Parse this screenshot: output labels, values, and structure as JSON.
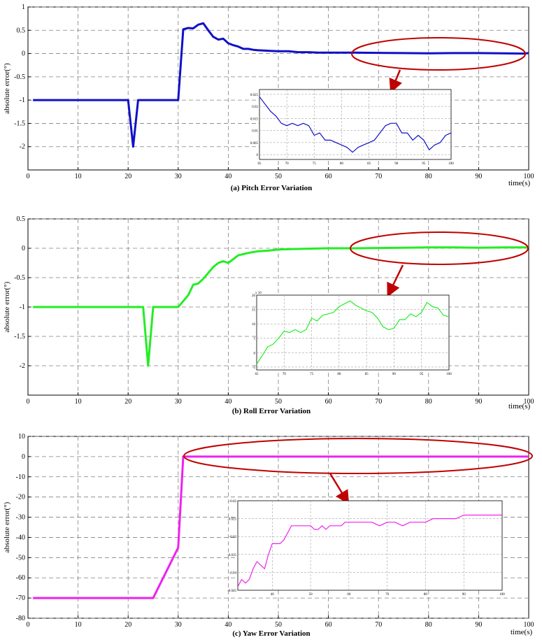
{
  "chart_data": [
    {
      "type": "line",
      "caption": "(a) Pitch Error Variation",
      "ylabel": "absolute error(°)",
      "xunit": "time(s)",
      "xlim": [
        0,
        100
      ],
      "ylim": [
        -2.5,
        1
      ],
      "xticks": [
        "0",
        "10",
        "20",
        "30",
        "40",
        "50",
        "60",
        "70",
        "80",
        "90",
        "100"
      ],
      "yticks": [
        "1",
        "0.5",
        "0",
        "-0.5",
        "-1",
        "-1.5",
        "-2"
      ],
      "ytick_values": [
        1,
        0.5,
        0,
        -0.5,
        -1,
        -1.5,
        -2
      ],
      "grid": true,
      "color": "#1010c8",
      "x": [
        1,
        2,
        5,
        10,
        15,
        20,
        21,
        22,
        25,
        28,
        30,
        31,
        32,
        33,
        34,
        35,
        36,
        37,
        38,
        39,
        40,
        41,
        42,
        43,
        44,
        45,
        46,
        48,
        50,
        52,
        54,
        56,
        58,
        60,
        65,
        70,
        75,
        80,
        85,
        90,
        95,
        99,
        100
      ],
      "y": [
        -1,
        -1,
        -1,
        -1,
        -1,
        -1,
        -2,
        -1,
        -1,
        -1,
        -1,
        0.52,
        0.55,
        0.54,
        0.62,
        0.65,
        0.5,
        0.36,
        0.3,
        0.32,
        0.22,
        0.18,
        0.15,
        0.1,
        0.1,
        0.08,
        0.07,
        0.06,
        0.05,
        0.05,
        0.03,
        0.03,
        0.02,
        0.02,
        0.02,
        0.015,
        0.01,
        0.005,
        0.01,
        0.01,
        0.005,
        0.0,
        0.01
      ],
      "highlight_xrange": [
        65,
        100
      ],
      "inset": {
        "xlim": [
          65,
          100
        ],
        "ylim": [
          -0.002,
          0.027
        ],
        "xticks": [
          "65",
          "70",
          "75",
          "80",
          "85",
          "90",
          "95",
          "100"
        ],
        "yticks": [
          "0.025",
          "0.02",
          "0.015",
          "0.01",
          "0.005",
          "0"
        ],
        "ytick_values": [
          0.025,
          0.02,
          0.015,
          0.01,
          0.005,
          0
        ],
        "x": [
          65,
          66,
          67,
          68,
          69,
          70,
          71,
          72,
          73,
          74,
          75,
          76,
          77,
          78,
          79,
          80,
          81,
          82,
          83,
          84,
          85,
          86,
          87,
          88,
          89,
          90,
          91,
          92,
          93,
          94,
          95,
          96,
          97,
          98,
          99,
          100
        ],
        "y": [
          0.024,
          0.021,
          0.018,
          0.016,
          0.013,
          0.012,
          0.013,
          0.012,
          0.013,
          0.012,
          0.008,
          0.009,
          0.006,
          0.006,
          0.005,
          0.004,
          0.003,
          0.001,
          0.003,
          0.004,
          0.005,
          0.006,
          0.009,
          0.012,
          0.013,
          0.013,
          0.009,
          0.009,
          0.006,
          0.008,
          0.006,
          0.002,
          0.004,
          0.005,
          0.008,
          0.009
        ]
      }
    },
    {
      "type": "line",
      "caption": "(b) Roll Error Variation",
      "ylabel": "absolute error(°)",
      "xunit": "time(s)",
      "xlim": [
        0,
        100
      ],
      "ylim": [
        -2.5,
        0.5
      ],
      "xticks": [
        "0",
        "10",
        "20",
        "30",
        "40",
        "50",
        "60",
        "70",
        "80",
        "90",
        "100"
      ],
      "yticks": [
        "0.5",
        "0",
        "-0.5",
        "-1",
        "-1.5",
        "-2"
      ],
      "ytick_values": [
        0.5,
        0,
        -0.5,
        -1,
        -1.5,
        -2
      ],
      "grid": true,
      "color": "#22ee22",
      "x": [
        1,
        5,
        10,
        15,
        20,
        23,
        24,
        25,
        28,
        30,
        32,
        33,
        34,
        35,
        36,
        37,
        38,
        39,
        40,
        42,
        44,
        46,
        48,
        50,
        55,
        60,
        65,
        70,
        75,
        80,
        85,
        90,
        95,
        100
      ],
      "y": [
        -1,
        -1,
        -1,
        -1,
        -1,
        -1,
        -2,
        -1,
        -1,
        -1,
        -0.8,
        -0.62,
        -0.6,
        -0.52,
        -0.42,
        -0.32,
        -0.25,
        -0.22,
        -0.25,
        -0.12,
        -0.08,
        -0.05,
        -0.04,
        -0.02,
        -0.01,
        0.0,
        0.0,
        0.005,
        0.01,
        0.015,
        0.015,
        0.01,
        0.015,
        0.015
      ],
      "highlight_xrange": [
        64,
        100
      ],
      "inset": {
        "xlim": [
          65,
          100
        ],
        "ylim": [
          -6,
          20
        ],
        "exponent_label": "x 10",
        "xticks": [
          "65",
          "70",
          "75",
          "80",
          "85",
          "90",
          "95",
          "100"
        ],
        "yticks": [
          "20",
          "15",
          "10",
          "5",
          "0",
          "-5"
        ],
        "ytick_values": [
          20,
          15,
          10,
          5,
          0,
          -5
        ],
        "x": [
          65,
          66,
          67,
          68,
          69,
          70,
          71,
          72,
          73,
          74,
          75,
          76,
          77,
          78,
          79,
          80,
          81,
          82,
          83,
          84,
          85,
          86,
          87,
          88,
          89,
          90,
          91,
          92,
          93,
          94,
          95,
          96,
          97,
          98,
          99,
          100
        ],
        "y": [
          -4,
          -1,
          2,
          3,
          5,
          7.5,
          7,
          8,
          7,
          8,
          12,
          11,
          13,
          13.5,
          14,
          16,
          17,
          18,
          16.5,
          15.5,
          14.5,
          14,
          12,
          9,
          8,
          8.5,
          11.5,
          11.5,
          13.5,
          12.5,
          14,
          17.5,
          16,
          15.5,
          13,
          12.5
        ]
      }
    },
    {
      "type": "line",
      "caption": "(c) Yaw Error Variation",
      "ylabel": "absolute error(°)",
      "xunit": "time(s)",
      "xlim": [
        0,
        100
      ],
      "ylim": [
        -80,
        10
      ],
      "xticks": [
        "0",
        "10",
        "20",
        "30",
        "40",
        "50",
        "60",
        "70",
        "80",
        "90",
        "100"
      ],
      "yticks": [
        "10",
        "0",
        "-10",
        "-20",
        "-30",
        "-40",
        "-50",
        "-60",
        "-70",
        "-80"
      ],
      "ytick_values": [
        10,
        0,
        -10,
        -20,
        -30,
        -40,
        -50,
        -60,
        -70,
        -80
      ],
      "grid": true,
      "color": "#ee22ee",
      "x": [
        1,
        5,
        10,
        15,
        20,
        25,
        28,
        30,
        31,
        32,
        35,
        40,
        50,
        60,
        70,
        80,
        90,
        100
      ],
      "y": [
        -70,
        -70,
        -70,
        -70,
        -70,
        -70,
        -55,
        -45,
        0,
        0,
        0,
        0,
        0,
        0,
        0,
        0,
        0,
        0
      ],
      "highlight_xrange": [
        31,
        100
      ],
      "inset": {
        "xlim": [
          31,
          100
        ],
        "ylim": [
          -0.045,
          -0.02
        ],
        "xticks": [
          "40",
          "50",
          "60",
          "70",
          "80",
          "90",
          "100"
        ],
        "xtick_values": [
          40,
          50,
          60,
          70,
          80,
          90,
          100
        ],
        "yticks": [
          "-0.02",
          "-0.025",
          "-0.03",
          "-0.035",
          "-0.04",
          "-0.045"
        ],
        "ytick_values": [
          -0.02,
          -0.025,
          -0.03,
          -0.035,
          -0.04,
          -0.045
        ],
        "x": [
          31,
          32,
          33,
          34,
          35,
          36,
          37,
          38,
          39,
          40,
          41,
          42,
          43,
          44,
          45,
          46,
          47,
          48,
          49,
          50,
          51,
          52,
          53,
          54,
          55,
          56,
          57,
          58,
          59,
          60,
          62,
          64,
          66,
          68,
          70,
          72,
          74,
          76,
          78,
          80,
          82,
          84,
          86,
          88,
          90,
          92,
          94,
          96,
          98,
          100
        ],
        "y": [
          -0.044,
          -0.042,
          -0.043,
          -0.042,
          -0.039,
          -0.037,
          -0.038,
          -0.039,
          -0.035,
          -0.032,
          -0.032,
          -0.032,
          -0.031,
          -0.029,
          -0.027,
          -0.027,
          -0.027,
          -0.027,
          -0.027,
          -0.027,
          -0.028,
          -0.028,
          -0.027,
          -0.028,
          -0.027,
          -0.027,
          -0.027,
          -0.027,
          -0.026,
          -0.026,
          -0.026,
          -0.026,
          -0.026,
          -0.027,
          -0.026,
          -0.026,
          -0.027,
          -0.026,
          -0.026,
          -0.026,
          -0.025,
          -0.025,
          -0.025,
          -0.025,
          -0.024,
          -0.024,
          -0.024,
          -0.024,
          -0.024,
          -0.024
        ]
      }
    }
  ]
}
